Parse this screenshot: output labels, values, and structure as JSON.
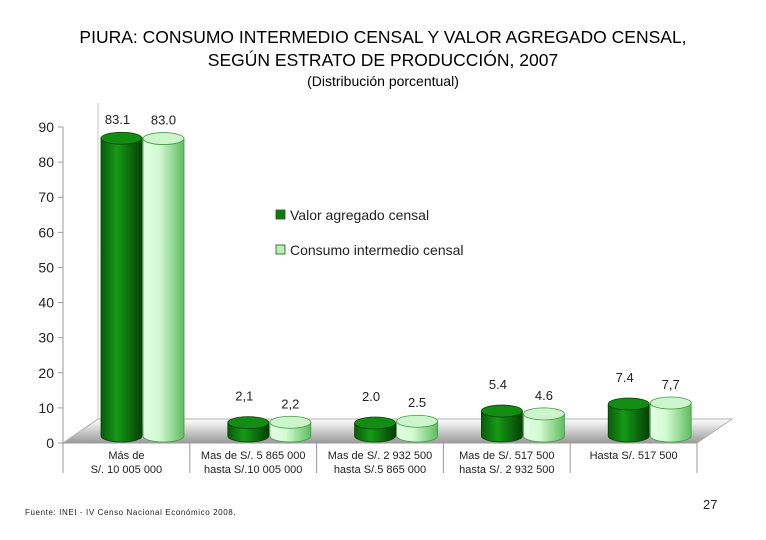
{
  "title_line1": "PIURA: CONSUMO INTERMEDIO CENSAL Y VALOR AGREGADO CENSAL,",
  "title_line2": "SEGÚN ESTRATO DE PRODUCCIÓN, 2007",
  "subtitle": "(Distribución porcentual)",
  "footer": {
    "source": "Fuente: INEI - IV Censo Nacional Económico 2008.",
    "page_number": "27"
  },
  "chart_data": {
    "type": "bar",
    "title": "",
    "xlabel": "",
    "ylabel": "",
    "ylim": [
      0,
      90
    ],
    "yticks": [
      "0",
      "10",
      "20",
      "30",
      "40",
      "50",
      "60",
      "70",
      "80",
      "90"
    ],
    "categories": [
      [
        "Más de",
        "S/. 10 005 000"
      ],
      [
        "Mas de S/. 5 865 000",
        "hasta S/.10 005 000"
      ],
      [
        "Mas de S/. 2 932 500",
        "hasta S/.5 865 000"
      ],
      [
        "Mas de S/. 517 500",
        "hasta S/. 2 932 500"
      ],
      [
        "Hasta S/. 517 500"
      ]
    ],
    "legend_position": "right",
    "series": [
      {
        "name": "Valor agregado censal",
        "values": [
          83.1,
          2.1,
          2.0,
          5.4,
          7.4
        ],
        "labels": [
          "83.1",
          "2,1",
          "2.0",
          "5.4",
          "7.4"
        ],
        "color": "#0d7a0d"
      },
      {
        "name": "Consumo intermedio censal",
        "values": [
          83.0,
          2.2,
          2.5,
          4.6,
          7.7
        ],
        "labels": [
          "83.0",
          "2,2",
          "2.5",
          "4.6",
          "7,7"
        ],
        "color": "#b8f0b8"
      }
    ]
  }
}
